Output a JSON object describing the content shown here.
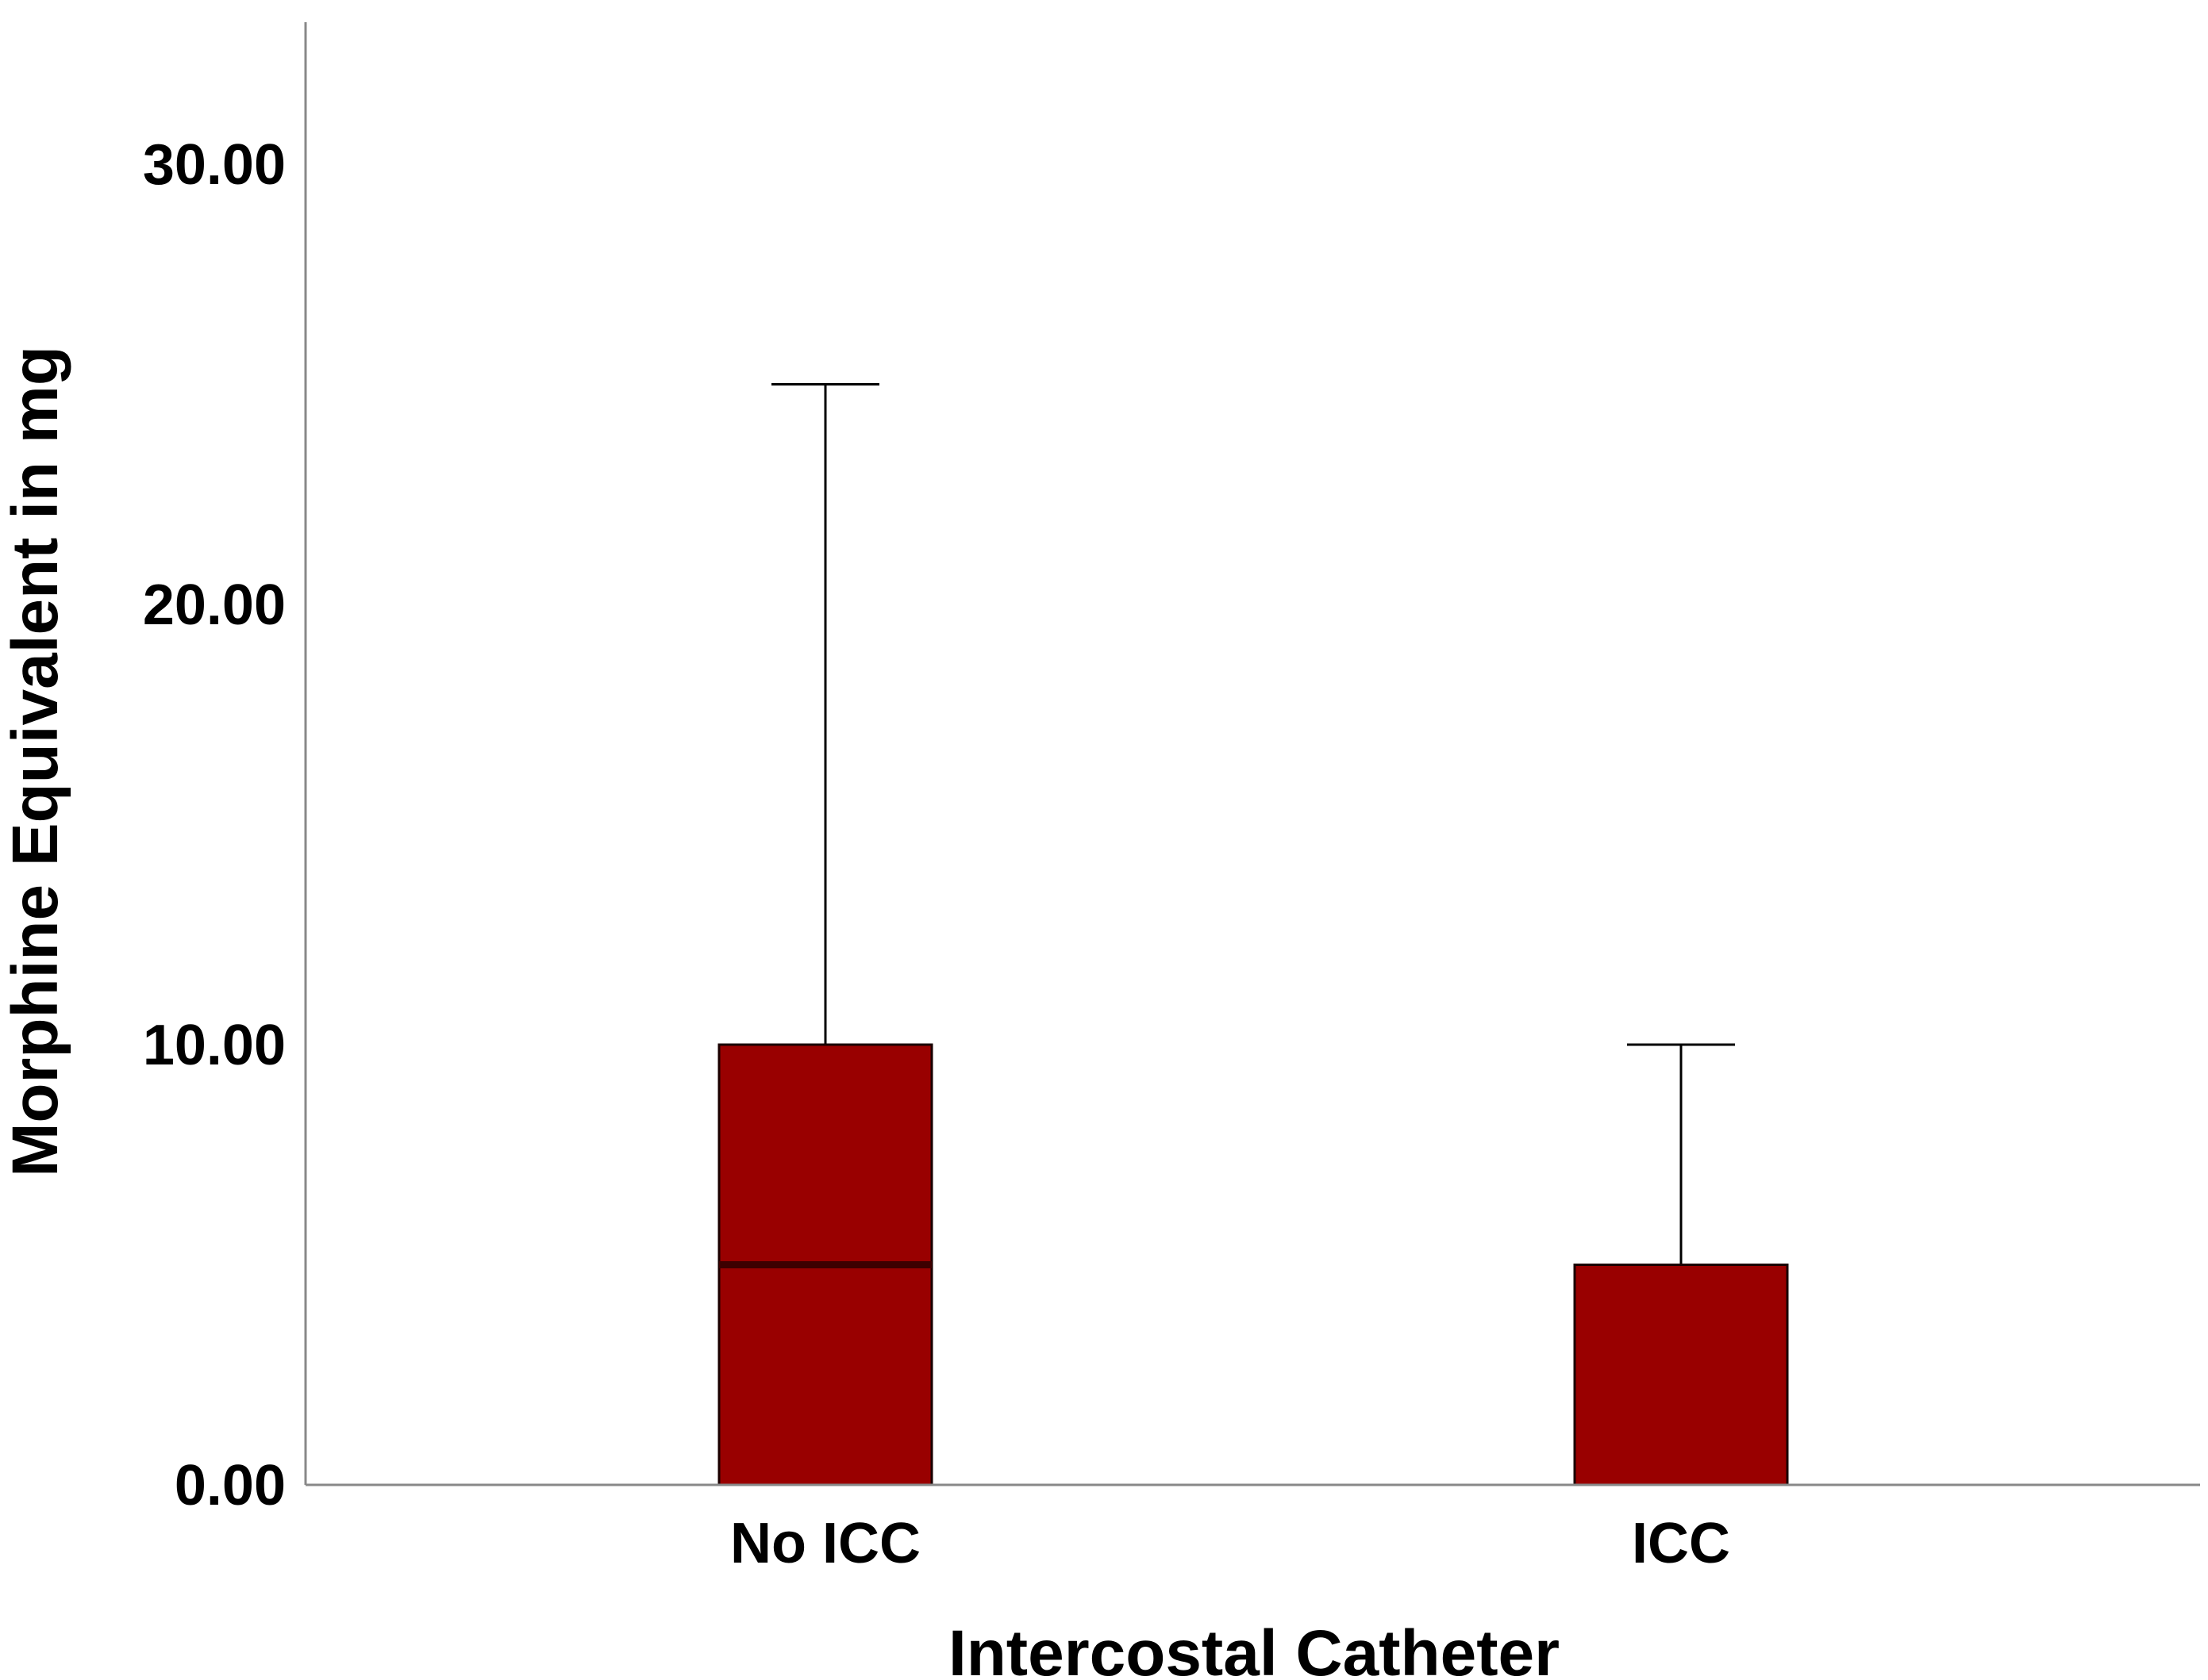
{
  "chart_data": {
    "type": "box",
    "title": "",
    "xlabel": "Intercostal Catheter",
    "ylabel": "Morphine Equivalent in mg",
    "ylim": [
      0,
      33.2
    ],
    "yticks": [
      "0.00",
      "10.00",
      "20.00",
      "30.00"
    ],
    "ytick_values": [
      0,
      10,
      20,
      30
    ],
    "grid": false,
    "legend": "none",
    "categories": [
      "No ICC",
      "ICC"
    ],
    "series": [
      {
        "values": [
          {
            "category": "No ICC",
            "min": 0,
            "q1": 0,
            "median": 5,
            "q3": 10,
            "max": 25
          },
          {
            "category": "ICC",
            "min": 0,
            "q1": 0,
            "median": 0,
            "q3": 5,
            "max": 10
          }
        ]
      }
    ],
    "colors": {
      "box_fill": "#990000",
      "box_stroke": "#1a0000",
      "median_line": "#3d0000",
      "whisker": "#000000",
      "axis": "#888888",
      "text": "#000000"
    }
  }
}
